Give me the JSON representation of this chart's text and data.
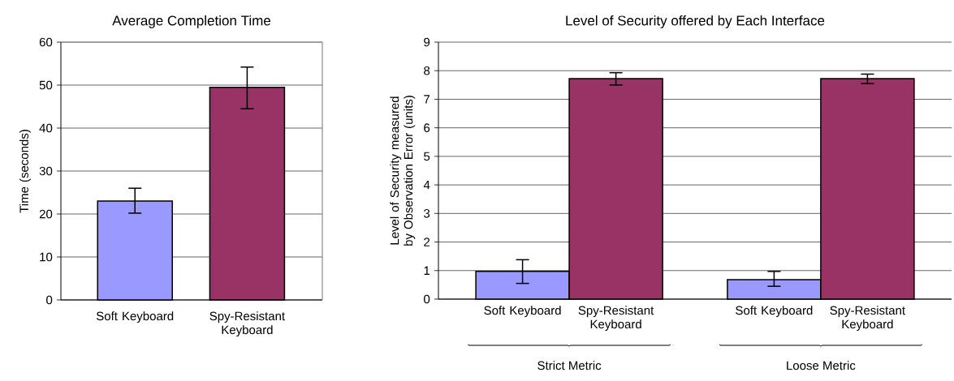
{
  "chart_data": [
    {
      "type": "bar",
      "title": "Average Completion Time",
      "ylabel": "Time (seconds)",
      "categories": [
        "Soft Keyboard",
        "Spy-Resistant Keyboard"
      ],
      "values": [
        23,
        49.5
      ],
      "colors": [
        "#9999ff",
        "#993366"
      ],
      "errors": [
        [
          20.2,
          26
        ],
        [
          44.5,
          54.2
        ]
      ],
      "ylim": [
        0,
        60
      ],
      "yticks": [
        0,
        10,
        20,
        30,
        40,
        50,
        60
      ],
      "grid": "y"
    },
    {
      "type": "bar",
      "title": "Level of Security offered by Each Interface",
      "ylabel": "Level of Security measured by Observation Error (units)",
      "categories": [
        "Strict Metric",
        "Loose Metric"
      ],
      "series": [
        {
          "name": "Soft Keyboard",
          "color": "#9999ff",
          "values": [
            0.97,
            0.68
          ],
          "errors": [
            [
              0.55,
              1.38
            ],
            [
              0.45,
              0.97
            ]
          ]
        },
        {
          "name": "Spy-Resistant Keyboard",
          "color": "#993366",
          "values": [
            7.72,
            7.72
          ],
          "errors": [
            [
              7.5,
              7.93
            ],
            [
              7.55,
              7.88
            ]
          ]
        }
      ],
      "ylim": [
        0,
        9
      ],
      "yticks": [
        0,
        1,
        2,
        3,
        4,
        5,
        6,
        7,
        8,
        9
      ],
      "grid": "y"
    }
  ]
}
